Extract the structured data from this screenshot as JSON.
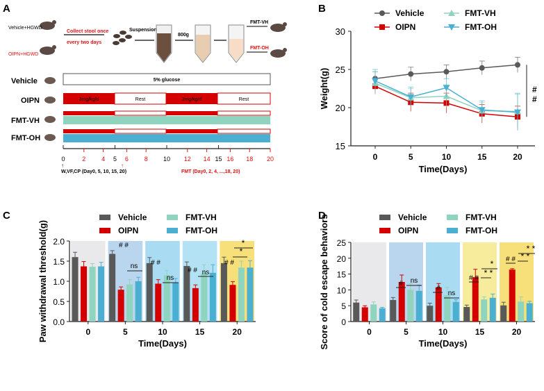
{
  "colors": {
    "vehicle": "#595959",
    "oipn": "#d40000",
    "fmtvh": "#8fd4bf",
    "fmtoh": "#4bafd2",
    "red": "#e01010"
  },
  "panelA": {
    "label": "A",
    "group1": "Vehicle+HGWD",
    "group2": "OIPN+HGWD",
    "collect1": "Collect stool once",
    "collect2": "every two days",
    "suspension": "Suspension",
    "speed": "800g",
    "fmt_vh": "FMT-VH",
    "fmt_oh": "FMT-OH",
    "rows": [
      "Vehicle",
      "OIPN",
      "FMT-VH",
      "FMT-OH"
    ],
    "glucose": "5% glucose",
    "dose": "3mg/kg/d",
    "rest": "Rest",
    "ticks_black": [
      "0",
      "5",
      "10",
      "15"
    ],
    "ticks_red": [
      "2",
      "4",
      "6",
      "8",
      "12",
      "14",
      "16",
      "18",
      "20"
    ],
    "note_left": "W,VF,CP (Day0, 5, 10, 15, 20)",
    "note_right": "FMT (Day0, 2, 4, ...,18, 20)"
  },
  "chart_data": [
    {
      "panel": "B",
      "type": "line",
      "title": "",
      "xlabel": "Time(Days)",
      "ylabel": "Weight(g)",
      "x": [
        0,
        5,
        10,
        15,
        20
      ],
      "ylim": [
        15,
        30
      ],
      "yticks": [
        15,
        20,
        25,
        30
      ],
      "series": [
        {
          "name": "Vehicle",
          "values": [
            23.8,
            24.4,
            24.7,
            25.2,
            25.6
          ],
          "err": [
            0.9,
            0.9,
            0.9,
            0.9,
            1.0
          ]
        },
        {
          "name": "OIPN",
          "values": [
            22.8,
            20.7,
            20.6,
            19.2,
            18.8
          ],
          "err": [
            1.0,
            1.2,
            1.3,
            1.2,
            1.4
          ]
        },
        {
          "name": "FMT-VH",
          "values": [
            23.2,
            21.3,
            21.5,
            19.6,
            19.5
          ],
          "err": [
            1.5,
            1.2,
            1.5,
            1.1,
            2.4
          ]
        },
        {
          "name": "FMT-OH",
          "values": [
            23.5,
            21.4,
            22.6,
            19.7,
            19.4
          ],
          "err": [
            1.5,
            1.3,
            1.2,
            1.2,
            2.4
          ]
        }
      ],
      "sig": "# #"
    },
    {
      "panel": "C",
      "type": "bar",
      "xlabel": "Time(Days)",
      "ylabel": "Paw withdrawal threshold(g)",
      "categories": [
        "0",
        "5",
        "10",
        "15",
        "20"
      ],
      "ylim": [
        0,
        2.0
      ],
      "yticks": [
        "0.0",
        "0.5",
        "1.0",
        "1.5",
        "2.0"
      ],
      "series": [
        {
          "name": "Vehicle",
          "values": [
            1.6,
            1.68,
            1.45,
            1.38,
            1.45
          ],
          "err": [
            0.12,
            0.08,
            0.14,
            0.1,
            0.15
          ]
        },
        {
          "name": "OIPN",
          "values": [
            1.37,
            0.79,
            0.94,
            0.83,
            0.91
          ],
          "err": [
            0.12,
            0.07,
            0.1,
            0.08,
            0.08
          ]
        },
        {
          "name": "FMT-VH",
          "values": [
            1.36,
            0.92,
            1.15,
            1.19,
            1.34
          ],
          "err": [
            0.08,
            0.12,
            0.12,
            0.22,
            0.16
          ]
        },
        {
          "name": "FMT-OH",
          "values": [
            1.37,
            1.0,
            0.97,
            1.21,
            1.34
          ],
          "err": [
            0.1,
            0.1,
            0.1,
            0.2,
            0.17
          ]
        }
      ],
      "annotations": [
        "# #",
        "ns",
        "# #",
        "ns",
        "# #",
        "ns",
        "# #",
        "*",
        "*"
      ]
    },
    {
      "panel": "D",
      "type": "bar",
      "xlabel": "Time(Days)",
      "ylabel": "Score of cold escape behaviors",
      "categories": [
        "0",
        "5",
        "10",
        "15",
        "20"
      ],
      "ylim": [
        0,
        25
      ],
      "yticks": [
        "0",
        "5",
        "10",
        "15",
        "20",
        "25"
      ],
      "series": [
        {
          "name": "Vehicle",
          "values": [
            6,
            6.8,
            5,
            4.6,
            5.1
          ],
          "err": [
            0.8,
            0.8,
            0.8,
            0.6,
            1.0
          ]
        },
        {
          "name": "OIPN",
          "values": [
            4.5,
            12.5,
            10.8,
            14,
            16.4
          ],
          "err": [
            0.5,
            2.2,
            1.2,
            2.5,
            0.3
          ]
        },
        {
          "name": "FMT-VH",
          "values": [
            5.4,
            10,
            8.3,
            7,
            6.3
          ],
          "err": [
            0.8,
            2,
            2.5,
            0.8,
            1.5
          ]
        },
        {
          "name": "FMT-OH",
          "values": [
            4.2,
            9.7,
            6.2,
            7.5,
            5.8
          ],
          "err": [
            0.3,
            1.8,
            0.7,
            1.2,
            0.6
          ]
        }
      ],
      "annotations": [
        "#",
        "ns",
        "#",
        "ns",
        "# #",
        "* *",
        "*",
        "# #",
        "* *",
        "* *"
      ]
    }
  ]
}
